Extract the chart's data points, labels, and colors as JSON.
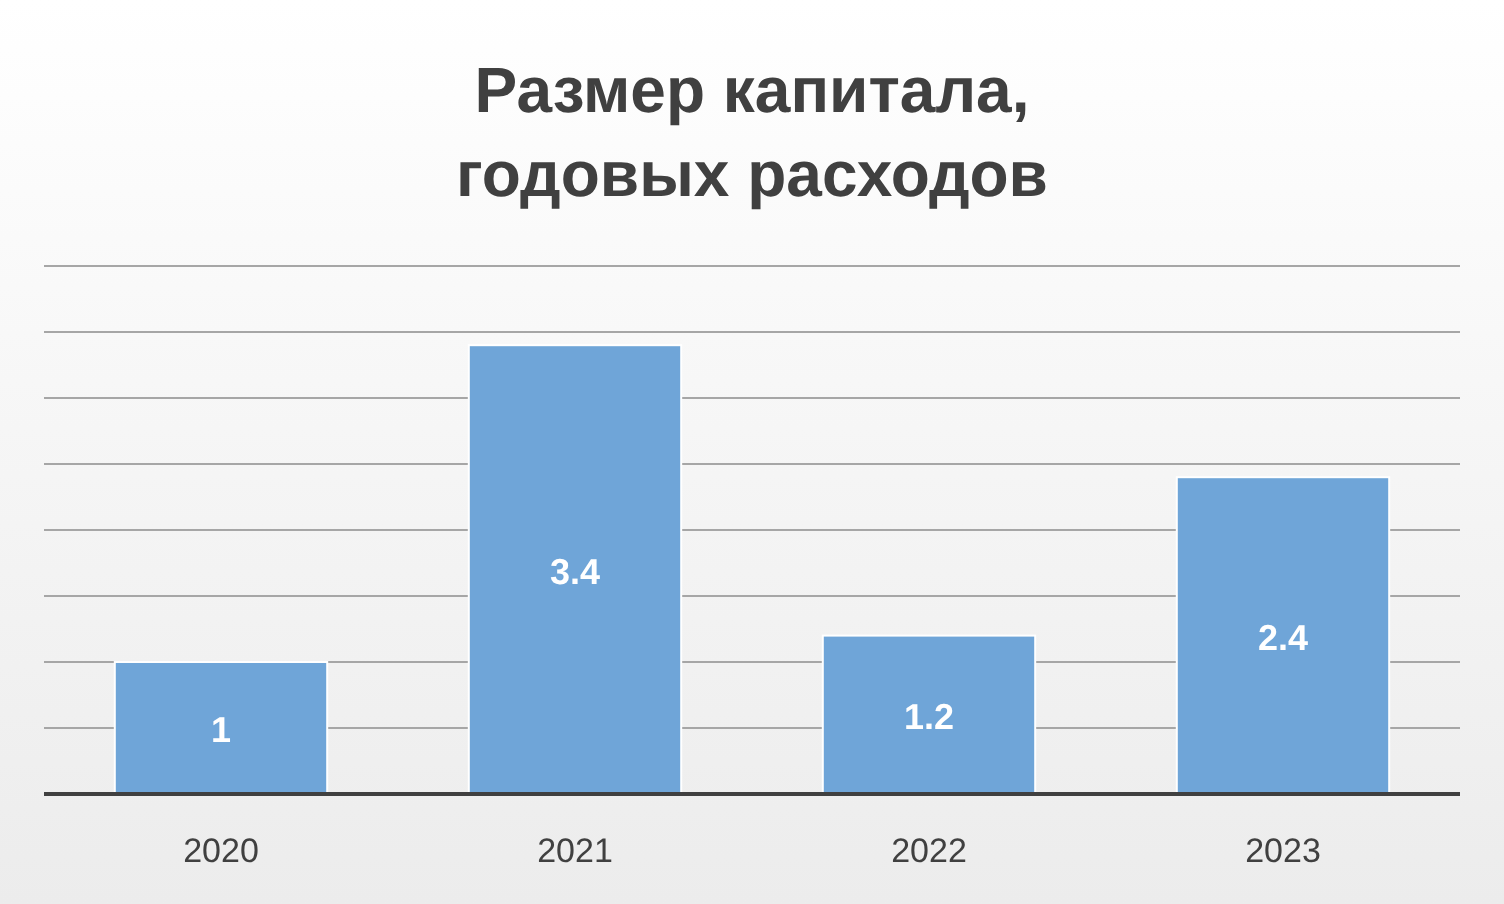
{
  "chart_data": {
    "type": "bar",
    "title": "Размер капитала,\nгодовых расходов",
    "categories": [
      "2020",
      "2021",
      "2022",
      "2023"
    ],
    "values": [
      1,
      3.4,
      1.2,
      2.4
    ],
    "color": "#6fa5d8",
    "ylim": [
      0,
      4
    ],
    "yticks": [
      {
        "value": 0,
        "label": null
      },
      {
        "value": 0.5,
        "label": null
      },
      {
        "value": 1,
        "label": null
      },
      {
        "value": 1.5,
        "label": null
      },
      {
        "value": 2,
        "label": null
      },
      {
        "value": 2.5,
        "label": null
      },
      {
        "value": 3,
        "label": null
      },
      {
        "value": 3.5,
        "label": null
      },
      {
        "value": 4,
        "label": null
      }
    ],
    "grid": true,
    "data_labels": true,
    "tick_labels": "x"
  }
}
